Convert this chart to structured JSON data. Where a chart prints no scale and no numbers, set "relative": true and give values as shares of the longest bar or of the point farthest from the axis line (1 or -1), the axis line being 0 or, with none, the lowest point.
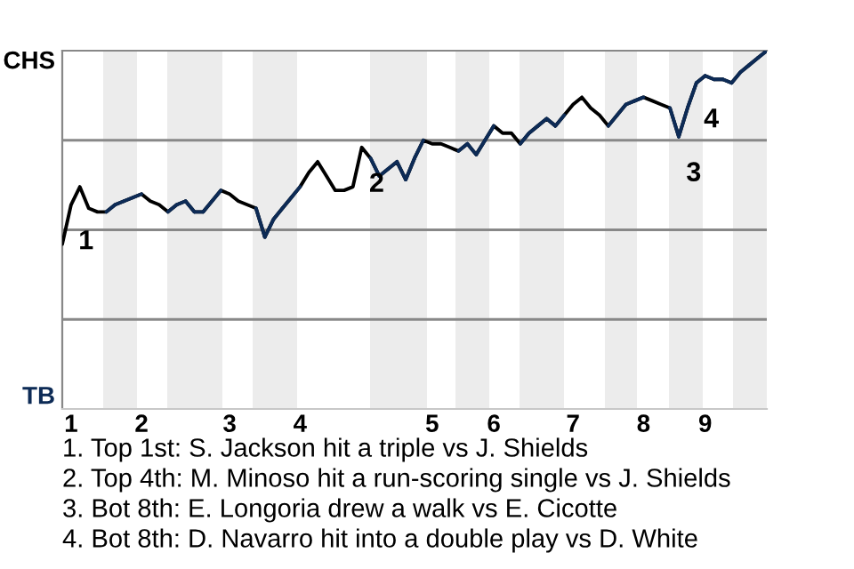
{
  "chart_data": {
    "type": "line",
    "relative": true,
    "categories": [
      null,
      "1",
      null,
      null,
      null,
      null,
      null,
      null,
      null,
      "2",
      null,
      null,
      null,
      null,
      null,
      null,
      null,
      null,
      null,
      "3",
      null,
      null,
      null,
      null,
      null,
      null,
      null,
      "4",
      null,
      null,
      null,
      null,
      null,
      null,
      null,
      null,
      null,
      null,
      null,
      null,
      null,
      null,
      "5",
      null,
      null,
      null,
      null,
      null,
      null,
      "6",
      null,
      null,
      null,
      null,
      null,
      null,
      null,
      null,
      "7",
      null,
      null,
      null,
      null,
      null,
      null,
      null,
      "8",
      null,
      null,
      null,
      null,
      null,
      null,
      "9",
      null,
      null,
      null,
      null,
      null,
      null,
      null
    ],
    "series": [
      {
        "color": "#000000",
        "values": [
          0.46,
          0.57,
          0.62,
          0.56,
          0.55,
          0.55,
          0.57,
          0.58,
          0.59,
          0.6,
          0.58,
          0.57,
          0.55,
          0.57,
          0.58,
          0.55,
          0.55,
          0.58,
          0.61,
          0.6,
          0.58,
          0.57,
          0.56,
          0.48,
          0.53,
          0.56,
          0.59,
          0.62,
          0.66,
          0.69,
          0.65,
          0.61,
          0.61,
          0.62,
          0.73,
          0.7,
          0.65,
          0.67,
          0.69,
          0.64,
          0.7,
          0.75,
          0.74,
          0.74,
          0.73,
          0.72,
          0.74,
          0.71,
          0.75,
          0.79,
          0.77,
          0.77,
          0.74,
          0.77,
          0.79,
          0.81,
          0.79,
          0.82,
          0.85,
          0.87,
          0.84,
          0.82,
          0.79,
          0.82,
          0.85,
          0.86,
          0.87,
          0.86,
          0.85,
          0.84,
          0.76,
          0.84,
          0.91,
          0.93,
          0.92,
          0.92,
          0.91,
          0.94,
          0.96,
          0.98,
          1.0
        ],
        "colors": [
          "#000000",
          "#000000",
          "#000000",
          "#000000",
          "#000000",
          "#0d2b56",
          "#0d2b56",
          "#0d2b56",
          "#0d2b56",
          "#000000",
          "#000000",
          "#000000",
          "#0d2b56",
          "#0d2b56",
          "#0d2b56",
          "#0d2b56",
          "#0d2b56",
          "#0d2b56",
          "#000000",
          "#000000",
          "#000000",
          "#000000",
          "#0d2b56",
          "#0d2b56",
          "#0d2b56",
          "#0d2b56",
          "#0d2b56",
          "#000000",
          "#000000",
          "#000000",
          "#000000",
          "#000000",
          "#000000",
          "#000000",
          "#000000",
          "#0d2b56",
          "#0d2b56",
          "#0d2b56",
          "#0d2b56",
          "#0d2b56",
          "#0d2b56",
          "#000000",
          "#000000",
          "#000000",
          "#000000",
          "#0d2b56",
          "#0d2b56",
          "#0d2b56",
          "#0d2b56",
          "#000000",
          "#000000",
          "#000000",
          "#0d2b56",
          "#0d2b56",
          "#0d2b56",
          "#0d2b56",
          "#0d2b56",
          "#000000",
          "#000000",
          "#000000",
          "#000000",
          "#000000",
          "#0d2b56",
          "#0d2b56",
          "#0d2b56",
          "#0d2b56",
          "#000000",
          "#000000",
          "#000000",
          "#0d2b56",
          "#0d2b56",
          "#0d2b56",
          "#0d2b56",
          "#0d2b56",
          "#0d2b56",
          "#0d2b56",
          "#0d2b56",
          "#0d2b56",
          "#0d2b56",
          "#0d2b56",
          "#0d2b56"
        ]
      }
    ],
    "ref_lines": [
      {
        "axis": "y",
        "value": 0.25,
        "color": "#888888"
      },
      {
        "axis": "y",
        "value": 0.5,
        "color": "#888888"
      },
      {
        "axis": "y",
        "value": 0.75,
        "color": "#888888"
      }
    ],
    "annotations": [
      "CHS",
      "TB",
      {
        "text": "1",
        "y": 0.57
      },
      {
        "text": "2",
        "y": 0.73
      },
      {
        "text": "3",
        "y": 0.76
      },
      {
        "text": "4",
        "y": 0.91
      },
      "1. Top 1st: S. Jackson hit a triple vs J. Shields",
      "2. Top 4th: M. Minoso hit a run-scoring single vs J. Shields",
      "3. Bot 8th: E. Longoria drew a walk vs E. Cicotte",
      "4. Bot 8th: D. Navarro hit into a double play vs D. White"
    ]
  }
}
